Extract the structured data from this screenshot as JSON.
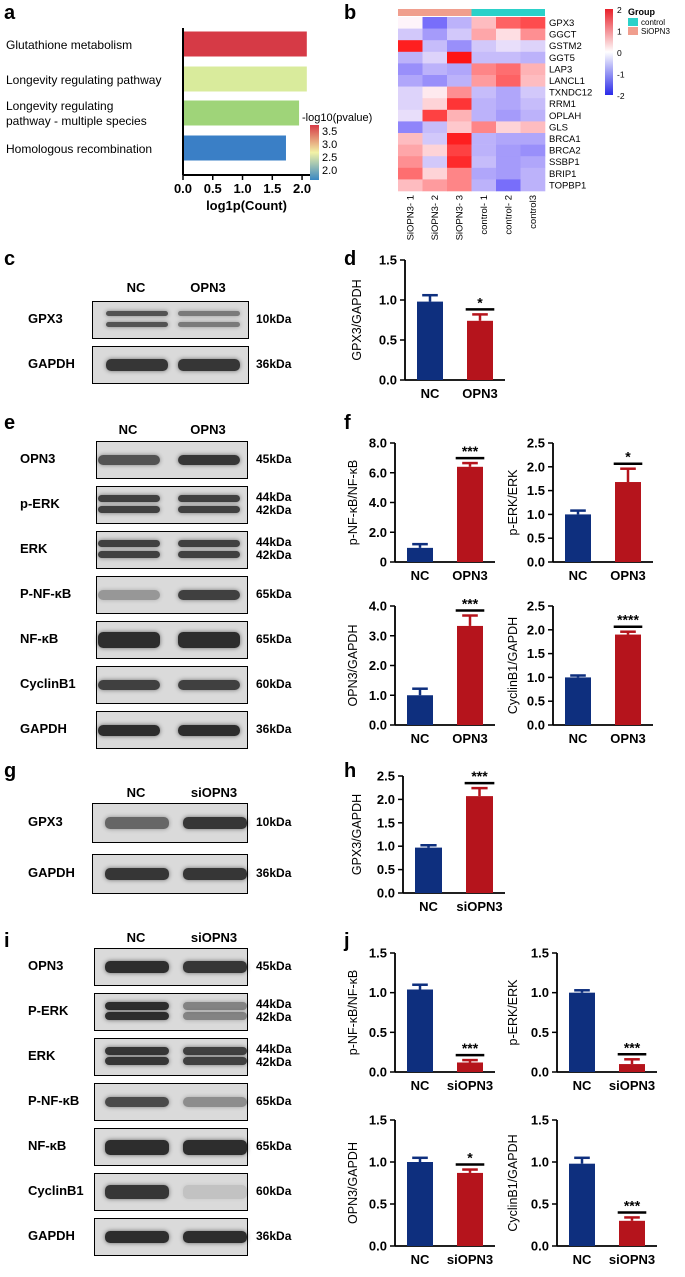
{
  "panels": {
    "a": {
      "letter": "a",
      "legend_title": "-log10(pvalue)",
      "legend_ticks": [
        "3.5",
        "3.0",
        "2.5",
        "2.0"
      ],
      "chart_data": {
        "type": "bar",
        "orientation": "horizontal",
        "categories": [
          "Glutathione metabolism",
          "Longevity regulating pathway",
          "Longevity regulating\npathway - multiple species",
          "Homologous recombination"
        ],
        "values": [
          2.08,
          2.08,
          1.95,
          1.73
        ],
        "colors": [
          "#d63a46",
          "#d9eb9c",
          "#9fd479",
          "#3a7fc6"
        ],
        "xlabel": "log1p(Count)",
        "xticks": [
          "0.0",
          "0.5",
          "1.0",
          "1.5",
          "2.0"
        ],
        "xlim": [
          0,
          2.1
        ]
      }
    },
    "b": {
      "letter": "b",
      "legend_group_title": "Group",
      "legend_groups": [
        {
          "name": "control",
          "color": "#2bd1c9"
        },
        {
          "name": "SiOPN3",
          "color": "#f09e8e"
        }
      ],
      "scale_ticks": [
        "2",
        "1",
        "0",
        "-1",
        "-2"
      ],
      "chart_data": {
        "type": "heatmap",
        "genes": [
          "GPX3",
          "GGCT",
          "GSTM2",
          "GGT5",
          "LAP3",
          "LANCL1",
          "TXNDC12",
          "RRM1",
          "OPLAH",
          "GLS",
          "BRCA1",
          "BRCA2",
          "SSBP1",
          "BRIP1",
          "TOPBP1"
        ],
        "samples": [
          "SiOPN3- 1",
          "SiOPN3- 2",
          "SiOPN3- 3",
          "control- 1",
          "control- 2",
          "control3"
        ],
        "sample_groups": [
          "SiOPN3",
          "SiOPN3",
          "SiOPN3",
          "control",
          "control",
          "control"
        ],
        "values": [
          [
            0.0,
            -1.2,
            -0.6,
            0.5,
            1.3,
            1.5
          ],
          [
            -0.4,
            -0.8,
            -0.4,
            0.7,
            0.2,
            0.9
          ],
          [
            1.9,
            -0.5,
            -0.9,
            -0.4,
            -0.2,
            -0.3
          ],
          [
            -0.6,
            -0.3,
            2.0,
            -0.5,
            -0.5,
            -0.6
          ],
          [
            -0.9,
            -0.6,
            -0.7,
            1.0,
            1.2,
            0.6
          ],
          [
            -0.7,
            -0.9,
            -0.6,
            0.8,
            1.3,
            0.5
          ],
          [
            -0.3,
            0.1,
            0.9,
            -0.5,
            -0.7,
            -0.4
          ],
          [
            -0.3,
            0.3,
            1.7,
            -0.6,
            -0.7,
            -0.5
          ],
          [
            -0.2,
            1.6,
            0.6,
            -0.6,
            -0.8,
            -0.6
          ],
          [
            -1.0,
            -0.5,
            0.4,
            1.0,
            0.3,
            0.5
          ],
          [
            0.5,
            -0.4,
            1.9,
            -0.6,
            -0.7,
            -0.7
          ],
          [
            0.7,
            0.3,
            1.6,
            -0.6,
            -0.8,
            -0.9
          ],
          [
            0.9,
            -0.4,
            1.8,
            -0.5,
            -0.8,
            -0.7
          ],
          [
            1.2,
            0.3,
            1.0,
            -0.7,
            -0.8,
            -0.6
          ],
          [
            0.5,
            0.8,
            1.0,
            -0.6,
            -1.2,
            -0.6
          ]
        ],
        "scale_range": [
          -2,
          2
        ]
      }
    },
    "c": {
      "letter": "c",
      "lanes": [
        "NC",
        "OPN3"
      ],
      "rows": [
        {
          "label": "GPX3",
          "kda": "10kDa"
        },
        {
          "label": "GAPDH",
          "kda": "36kDa"
        }
      ]
    },
    "d": {
      "letter": "d",
      "chart_data": {
        "type": "bar",
        "categories": [
          "NC",
          "OPN3"
        ],
        "values": [
          0.98,
          0.74
        ],
        "errors": [
          0.08,
          0.08
        ],
        "colors": [
          "#0e2f7e",
          "#b5141c"
        ],
        "ylabel": "GPX3/GAPDH",
        "ylim": [
          0,
          1.5
        ],
        "yticks": [
          "0.0",
          "0.5",
          "1.0",
          "1.5"
        ],
        "significance": "*"
      }
    },
    "e": {
      "letter": "e",
      "lanes": [
        "NC",
        "OPN3"
      ],
      "rows": [
        {
          "label": "OPN3",
          "kda": "45kDa"
        },
        {
          "label": "p-ERK",
          "kda": "44kDa\n42kDa"
        },
        {
          "label": "ERK",
          "kda": "44kDa\n42kDa"
        },
        {
          "label": "P-NF-κB",
          "kda": "65kDa"
        },
        {
          "label": "NF-κB",
          "kda": "65kDa"
        },
        {
          "label": "CyclinB1",
          "kda": "60kDa"
        },
        {
          "label": "GAPDH",
          "kda": "36kDa"
        }
      ]
    },
    "f": {
      "letter": "f",
      "charts": [
        {
          "type": "bar",
          "categories": [
            "NC",
            "OPN3"
          ],
          "values": [
            0.95,
            6.4
          ],
          "errors": [
            0.25,
            0.25
          ],
          "colors": [
            "#0e2f7e",
            "#b5141c"
          ],
          "ylabel": "p-NF-κB/NF-κB",
          "ylim": [
            0,
            8
          ],
          "yticks": [
            "0",
            "2.0",
            "4.0",
            "6.0",
            "8.0"
          ],
          "significance": "***"
        },
        {
          "type": "bar",
          "categories": [
            "NC",
            "OPN3"
          ],
          "values": [
            1.0,
            1.68
          ],
          "errors": [
            0.08,
            0.28
          ],
          "colors": [
            "#0e2f7e",
            "#b5141c"
          ],
          "ylabel": "p-ERK/ERK",
          "ylim": [
            0,
            2.5
          ],
          "yticks": [
            "0.0",
            "0.5",
            "1.0",
            "1.5",
            "2.0",
            "2.5"
          ],
          "significance": "*"
        },
        {
          "type": "bar",
          "categories": [
            "NC",
            "OPN3"
          ],
          "values": [
            1.0,
            3.33
          ],
          "errors": [
            0.22,
            0.35
          ],
          "colors": [
            "#0e2f7e",
            "#b5141c"
          ],
          "ylabel": "OPN3/GAPDH",
          "ylim": [
            0,
            4
          ],
          "yticks": [
            "0.0",
            "1.0",
            "2.0",
            "3.0",
            "4.0"
          ],
          "significance": "***"
        },
        {
          "type": "bar",
          "categories": [
            "NC",
            "OPN3"
          ],
          "values": [
            1.0,
            1.9
          ],
          "errors": [
            0.04,
            0.06
          ],
          "colors": [
            "#0e2f7e",
            "#b5141c"
          ],
          "ylabel": "CyclinB1/GAPDH",
          "ylim": [
            0,
            2.5
          ],
          "yticks": [
            "0.0",
            "0.5",
            "1.0",
            "1.5",
            "2.0",
            "2.5"
          ],
          "significance": "****"
        }
      ]
    },
    "g": {
      "letter": "g",
      "lanes": [
        "NC",
        "siOPN3"
      ],
      "rows": [
        {
          "label": "GPX3",
          "kda": "10kDa"
        },
        {
          "label": "GAPDH",
          "kda": "36kDa"
        }
      ]
    },
    "h": {
      "letter": "h",
      "chart_data": {
        "type": "bar",
        "categories": [
          "NC",
          "siOPN3"
        ],
        "values": [
          0.97,
          2.07
        ],
        "errors": [
          0.05,
          0.17
        ],
        "colors": [
          "#0e2f7e",
          "#b5141c"
        ],
        "ylabel": "GPX3/GAPDH",
        "ylim": [
          0,
          2.5
        ],
        "yticks": [
          "0.0",
          "0.5",
          "1.0",
          "1.5",
          "2.0",
          "2.5"
        ],
        "significance": "***"
      }
    },
    "i": {
      "letter": "i",
      "lanes": [
        "NC",
        "siOPN3"
      ],
      "rows": [
        {
          "label": "OPN3",
          "kda": "45kDa"
        },
        {
          "label": "P-ERK",
          "kda": "44kDa\n42kDa"
        },
        {
          "label": "ERK",
          "kda": "44kDa\n42kDa"
        },
        {
          "label": "P-NF-κB",
          "kda": "65kDa"
        },
        {
          "label": "NF-κB",
          "kda": "65kDa"
        },
        {
          "label": "CyclinB1",
          "kda": "60kDa"
        },
        {
          "label": "GAPDH",
          "kda": "36kDa"
        }
      ]
    },
    "j": {
      "letter": "j",
      "charts": [
        {
          "type": "bar",
          "categories": [
            "NC",
            "siOPN3"
          ],
          "values": [
            1.04,
            0.12
          ],
          "errors": [
            0.06,
            0.03
          ],
          "colors": [
            "#0e2f7e",
            "#b5141c"
          ],
          "ylabel": "p-NF-κB/NF-κB",
          "ylim": [
            0,
            1.5
          ],
          "yticks": [
            "0.0",
            "0.5",
            "1.0",
            "1.5"
          ],
          "significance": "***"
        },
        {
          "type": "bar",
          "categories": [
            "NC",
            "siOPN3"
          ],
          "values": [
            1.0,
            0.1
          ],
          "errors": [
            0.03,
            0.06
          ],
          "colors": [
            "#0e2f7e",
            "#b5141c"
          ],
          "ylabel": "p-ERK/ERK",
          "ylim": [
            0,
            1.5
          ],
          "yticks": [
            "0.0",
            "0.5",
            "1.0",
            "1.5"
          ],
          "significance": "***"
        },
        {
          "type": "bar",
          "categories": [
            "NC",
            "siOPN3"
          ],
          "values": [
            1.0,
            0.87
          ],
          "errors": [
            0.05,
            0.04
          ],
          "colors": [
            "#0e2f7e",
            "#b5141c"
          ],
          "ylabel": "OPN3/GAPDH",
          "ylim": [
            0,
            1.5
          ],
          "yticks": [
            "0.0",
            "0.5",
            "1.0",
            "1.5"
          ],
          "significance": "*"
        },
        {
          "type": "bar",
          "categories": [
            "NC",
            "siOPN3"
          ],
          "values": [
            0.98,
            0.3
          ],
          "errors": [
            0.07,
            0.04
          ],
          "colors": [
            "#0e2f7e",
            "#b5141c"
          ],
          "ylabel": "CyclinB1/GAPDH",
          "ylim": [
            0,
            1.5
          ],
          "yticks": [
            "0.0",
            "0.5",
            "1.0",
            "1.5"
          ],
          "significance": "***"
        }
      ]
    }
  }
}
